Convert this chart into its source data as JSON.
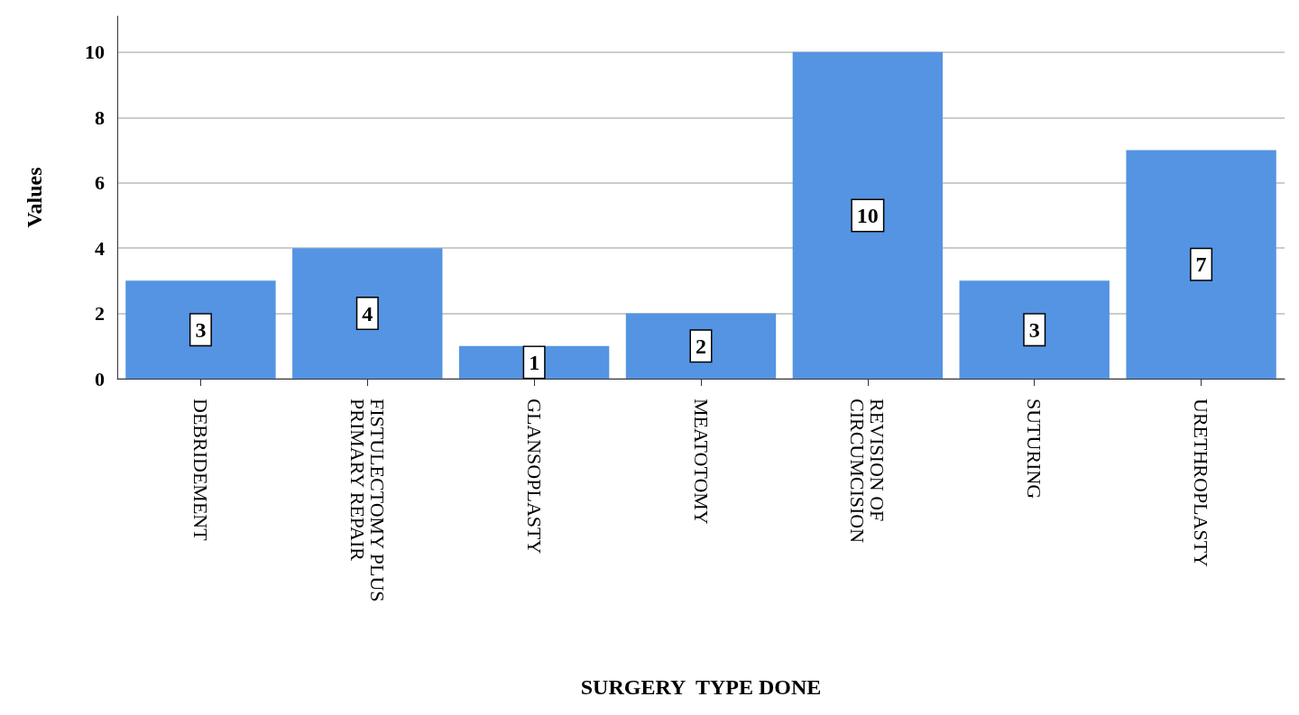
{
  "chart_data": {
    "type": "bar",
    "xlabel": "SURGERY  TYPE DONE",
    "ylabel": "Values",
    "categories": [
      "DEBRIDEMENT",
      "FISTULECTOMY PLUS\nPRIMARY REPAIR",
      "GLANSOPLASTY",
      "MEATOTOMY",
      "REVISION OF\nCIRCUMCISION",
      "SUTURING",
      "URETHROPLASTY"
    ],
    "values": [
      3,
      4,
      1,
      2,
      10,
      3,
      7
    ],
    "color": "#5494e2",
    "ylim": [
      0,
      11.1
    ],
    "yticks": [
      0,
      2,
      4,
      6,
      8,
      10
    ],
    "grid": "y",
    "data_labels": true
  }
}
